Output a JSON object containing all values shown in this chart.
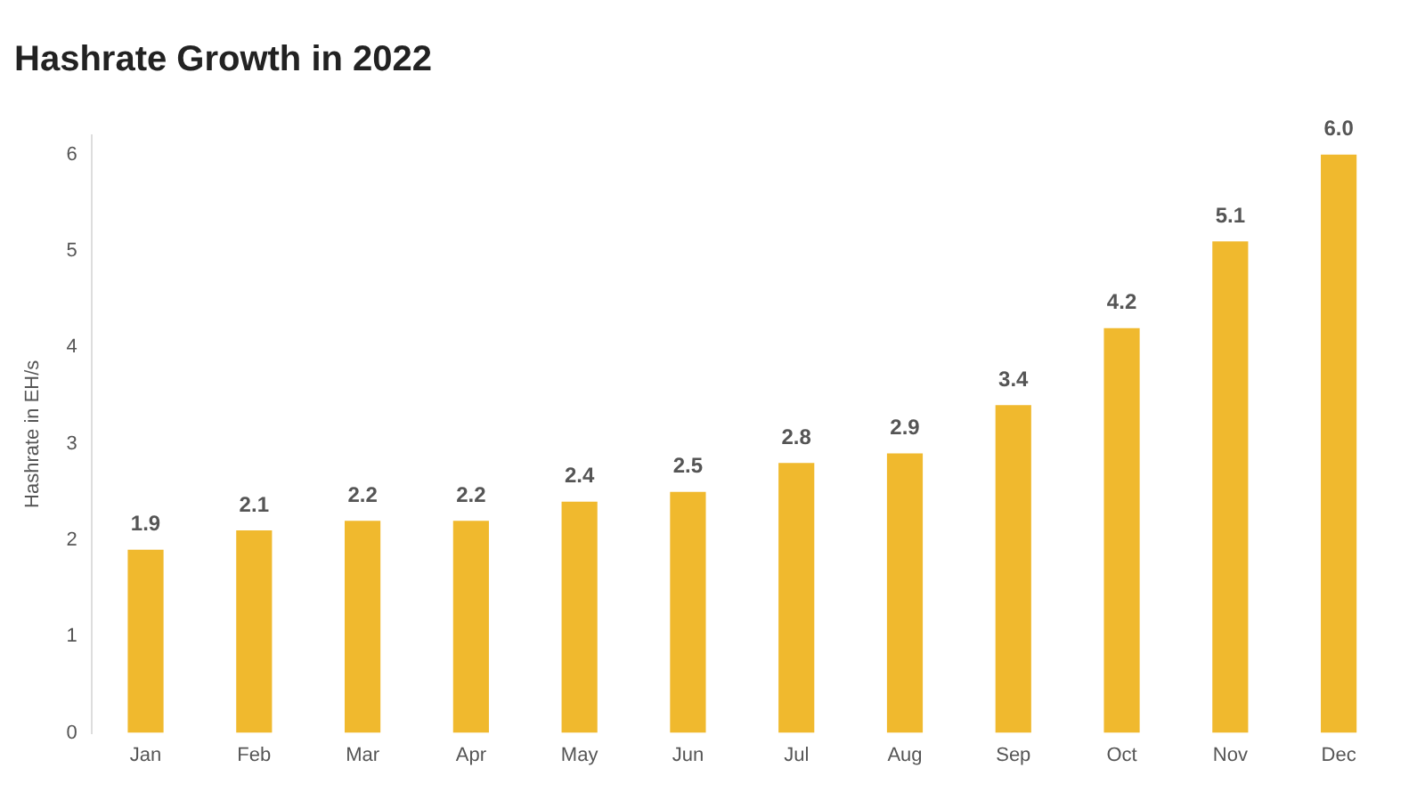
{
  "chart_data": {
    "type": "bar",
    "title": "Hashrate Growth in 2022",
    "ylabel": "Hashrate in EH/s",
    "categories": [
      "Jan",
      "Feb",
      "Mar",
      "Apr",
      "May",
      "Jun",
      "Jul",
      "Aug",
      "Sep",
      "Oct",
      "Nov",
      "Dec"
    ],
    "values": [
      1.9,
      2.1,
      2.2,
      2.2,
      2.4,
      2.5,
      2.8,
      2.9,
      3.4,
      4.2,
      5.1,
      6.0
    ],
    "value_labels": [
      "1.9",
      "2.1",
      "2.2",
      "2.2",
      "2.4",
      "2.5",
      "2.8",
      "2.9",
      "3.4",
      "4.2",
      "5.1",
      "6.0"
    ],
    "color": "#f0b92e",
    "ylim": [
      0,
      6.2
    ],
    "yticks": [
      0,
      1,
      2,
      3,
      4,
      5,
      6
    ],
    "grid": false,
    "legend": false
  }
}
